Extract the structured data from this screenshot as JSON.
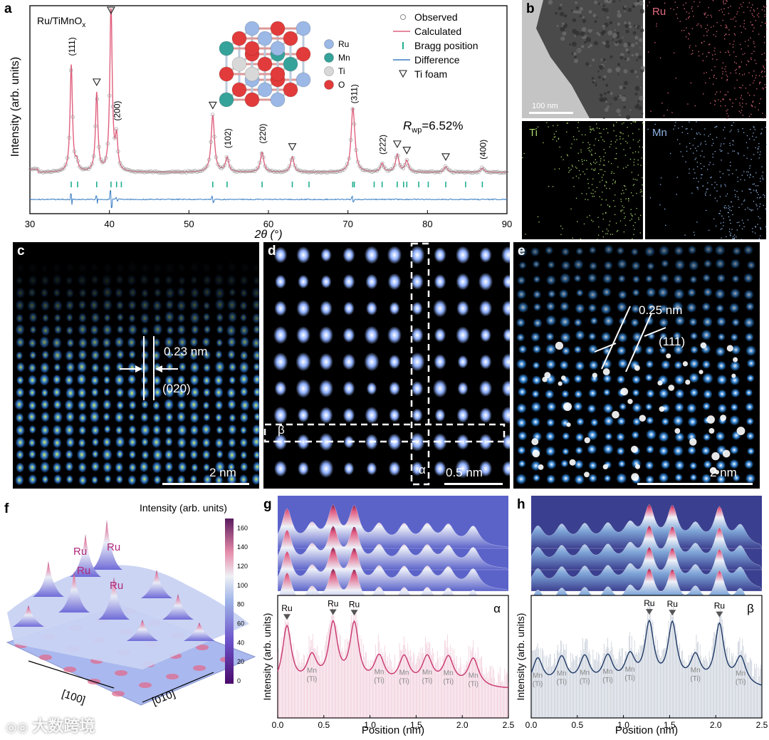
{
  "panel_labels": {
    "a": "a",
    "b": "b",
    "c": "c",
    "d": "d",
    "e": "e",
    "f": "f",
    "g": "g",
    "h": "h"
  },
  "chart_data": [
    {
      "id": "a",
      "type": "line",
      "title": "Ru/TiMnO",
      "title_sub": "x",
      "xlabel": "2θ (°)",
      "ylabel": "Intensity (arb. units)",
      "xlim": [
        30,
        90
      ],
      "xticks": [
        30,
        40,
        50,
        60,
        70,
        80,
        90
      ],
      "series": [
        {
          "name": "Observed",
          "color": "#8a8a8a"
        },
        {
          "name": "Calculated",
          "color": "#e0607e"
        },
        {
          "name": "Bragg position",
          "color": "#1fae8e"
        },
        {
          "name": "Difference",
          "color": "#3b7fc4"
        }
      ],
      "ti_foam_label": "Ti foam",
      "ti_foam_peaks": [
        38.4,
        40.2,
        53.0,
        63.0,
        76.2,
        77.4,
        82.3
      ],
      "peak_labels": [
        {
          "text": "(111)",
          "x": 35.2
        },
        {
          "text": "(200)",
          "x": 40.9
        },
        {
          "text": "(102)",
          "x": 54.8
        },
        {
          "text": "(220)",
          "x": 59.2
        },
        {
          "text": "(311)",
          "x": 70.7
        },
        {
          "text": "(222)",
          "x": 74.3
        },
        {
          "text": "(400)",
          "x": 86.9
        }
      ],
      "bragg_positions": [
        35.2,
        36.0,
        38.4,
        40.2,
        40.9,
        41.5,
        53.0,
        54.8,
        59.2,
        63.0,
        65.1,
        70.6,
        70.8,
        73.3,
        74.3,
        76.2,
        77.0,
        77.4,
        78.9,
        80.1,
        82.3,
        84.8,
        86.9
      ],
      "rwp_label": "R",
      "rwp_sub": "wp",
      "rwp_value": "=6.52%",
      "structure_legend": [
        "Ru",
        "Mn",
        "Ti",
        "O"
      ],
      "structure_colors": [
        "#9bb8e6",
        "#36a39a",
        "#d8d8d8",
        "#e23b3b"
      ]
    },
    {
      "id": "f",
      "type": "heatmap",
      "colorbar_title": "Intensity (arb. units)",
      "colorbar_ticks": [
        0,
        20,
        40,
        60,
        80,
        100,
        120,
        140,
        160
      ],
      "peak_labels": [
        "Ru",
        "Ru",
        "Ru",
        "Ru"
      ],
      "axis_labels": [
        "[100]",
        "[010]"
      ]
    },
    {
      "id": "g",
      "type": "line",
      "xlabel": "Position (nm)",
      "ylabel": "Intensity (arb. units)",
      "xlim": [
        0,
        2.5
      ],
      "xticks": [
        0.0,
        0.5,
        1.0,
        1.5,
        2.0,
        2.5
      ],
      "tag": "α",
      "ru_positions": [
        0.1,
        0.6,
        0.83
      ],
      "ru_label": "Ru",
      "mn_positions": [
        0.37,
        1.1,
        1.37,
        1.62,
        1.85,
        2.12
      ],
      "mn_label": "Mn",
      "ti_label": "(Ti)",
      "color": "#c9366f"
    },
    {
      "id": "h",
      "type": "line",
      "xlabel": "Position (nm)",
      "ylabel": "Intensity (arb. units)",
      "xlim": [
        0,
        2.5
      ],
      "xticks": [
        0.0,
        0.5,
        1.0,
        1.5,
        2.0,
        2.5
      ],
      "tag": "β",
      "ru_positions": [
        1.28,
        1.53,
        2.04
      ],
      "ru_label": "Ru",
      "mn_positions": [
        0.07,
        0.33,
        0.58,
        0.83,
        1.07,
        1.78,
        2.27
      ],
      "mn_label": "Mn",
      "ti_label": "(Ti)",
      "color": "#1f3a66"
    }
  ],
  "panel_b": {
    "scale": "100 nm",
    "maps": [
      "Ru",
      "Ti",
      "Mn"
    ],
    "map_colors": [
      "#e06a7e",
      "#a9d86a",
      "#8fb3e3"
    ]
  },
  "panel_c": {
    "d_spacing": "0.23 nm",
    "plane": "(020)",
    "scale": "2 nm"
  },
  "panel_d": {
    "beta": "β",
    "alpha": "α",
    "scale": "0.5 nm"
  },
  "panel_e": {
    "d_spacing": "0.25 nm",
    "plane": "(111)",
    "scale": "2 nm"
  },
  "watermark": "大数跨境"
}
